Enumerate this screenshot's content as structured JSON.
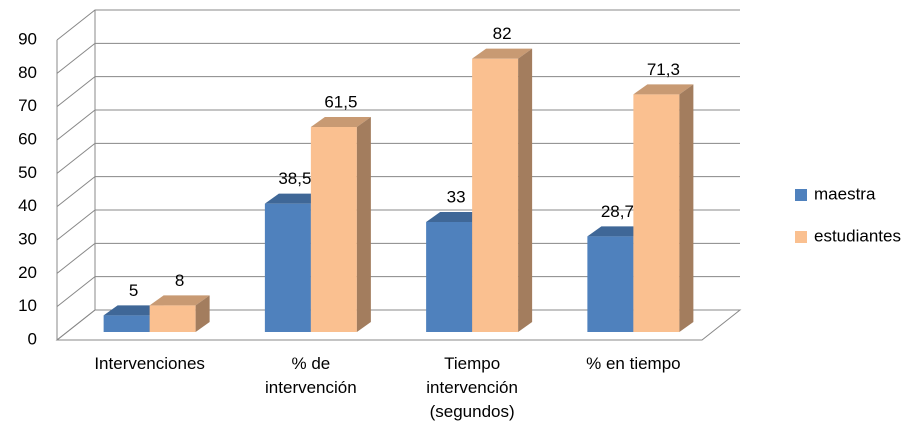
{
  "chart_data": {
    "type": "bar3d",
    "categories": [
      "Intervenciones",
      "% de intervención",
      "Tiempo intervención (segundos)",
      "% en tiempo"
    ],
    "series": [
      {
        "name": "maestra",
        "color": "#4f81bd",
        "values": [
          5,
          38.5,
          33,
          28.7
        ],
        "value_labels": [
          "5",
          "38,5",
          "33",
          "28,7"
        ]
      },
      {
        "name": "estudiantes",
        "color": "#fac090",
        "values": [
          8,
          61.5,
          82,
          71.3
        ],
        "value_labels": [
          "8",
          "61,5",
          "82",
          "71,3"
        ]
      }
    ],
    "ylim": [
      0,
      90
    ],
    "yticks": [
      0,
      10,
      20,
      30,
      40,
      50,
      60,
      70,
      80,
      90
    ],
    "grid": true,
    "legend": "right"
  }
}
